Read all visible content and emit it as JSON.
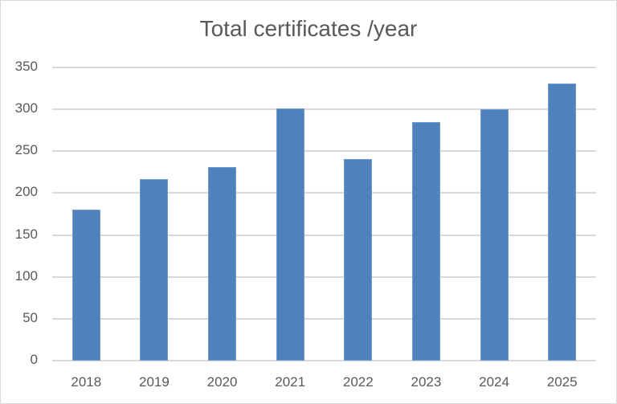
{
  "chart_data": {
    "type": "bar",
    "title": "Total certificates /year",
    "xlabel": "",
    "ylabel": "",
    "categories": [
      "2018",
      "2019",
      "2020",
      "2021",
      "2022",
      "2023",
      "2024",
      "2025"
    ],
    "values": [
      180,
      217,
      231,
      301,
      241,
      285,
      300,
      331
    ],
    "ylim": [
      0,
      350
    ],
    "yticks": [
      "0",
      "50",
      "100",
      "150",
      "200",
      "250",
      "300",
      "350"
    ],
    "grid": true,
    "legend": "none",
    "bar_color": "#4f81bd"
  }
}
